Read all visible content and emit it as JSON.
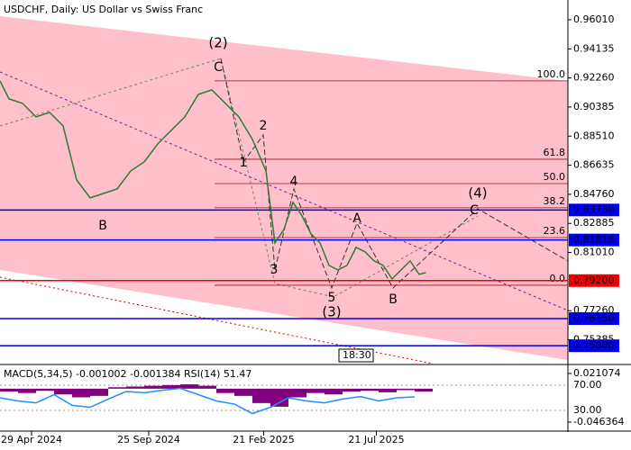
{
  "chart_data": [
    {
      "type": "line",
      "title": "USDCHF, Daily:  US Dollar vs Swiss Franc",
      "x": [
        0,
        8,
        20,
        32,
        44,
        56,
        68,
        80,
        92,
        104,
        116,
        128,
        140,
        152,
        164,
        176,
        188,
        200,
        212,
        224,
        236,
        244,
        252,
        260,
        268,
        276,
        284,
        292,
        300,
        308,
        316,
        324,
        332,
        340,
        348,
        356,
        364,
        372,
        378
      ],
      "series": [
        {
          "color": "#2e7d32",
          "values": [
            0.9207,
            0.9091,
            0.9062,
            0.8975,
            0.9004,
            0.8917,
            0.8569,
            0.8453,
            0.8482,
            0.8511,
            0.8627,
            0.8685,
            0.8801,
            0.8888,
            0.8975,
            0.912,
            0.9149,
            0.9062,
            0.8975,
            0.883,
            0.8627,
            0.8163,
            0.825,
            0.8424,
            0.8337,
            0.8221,
            0.8163,
            0.8018,
            0.7989,
            0.8018,
            0.8134,
            0.8105,
            0.8047,
            0.8018,
            0.7931,
            0.7989,
            0.8047,
            0.796,
            0.7972
          ]
        }
      ],
      "xlim": [
        0,
        504
      ],
      "ylim": [
        0.7385,
        0.9711
      ],
      "xticks": [
        {
          "value": 28,
          "label": "29 Apr 2024"
        },
        {
          "value": 132,
          "label": "25 Sep 2024"
        },
        {
          "value": 234,
          "label": "21 Feb 2025"
        },
        {
          "value": 334,
          "label": "21 Jul 2025"
        }
      ],
      "yticks": [
        {
          "value": 0.9601,
          "label": "0.96010"
        },
        0.94135,
        {
          "value": 0.9226,
          "label": "0.92260"
        },
        0.90385,
        {
          "value": 0.8851,
          "label": "0.88510"
        },
        0.86635,
        {
          "value": 0.8476,
          "label": "0.84760"
        },
        0.82885,
        {
          "value": 0.8101,
          "label": "0.81010"
        },
        {
          "value": 0.7726,
          "label": "0.77260"
        },
        0.75385
      ],
      "levels": [
        {
          "value": 0.8375,
          "label": "0.83750",
          "color": "#0000ee"
        },
        {
          "value": 0.81816,
          "color": "#0000ee"
        },
        {
          "value": 0.792,
          "label": "0.79200",
          "color": "#ee0000"
        },
        {
          "value": 0.7675,
          "label": "0.76750",
          "color": "#0000ee"
        },
        {
          "value": 0.75,
          "label": "0.75000",
          "color": "#0000ee"
        }
      ],
      "fib_levels": [
        {
          "label": "100.0",
          "price": 0.9207
        },
        {
          "label": "61.8",
          "price": 0.8702
        },
        {
          "label": "50.0",
          "price": 0.8545
        },
        {
          "label": "38.2",
          "price": 0.8389
        },
        {
          "label": "23.6",
          "price": 0.8197
        },
        {
          "label": "0.0",
          "price": 0.789
        }
      ],
      "annotations": [
        "(2)",
        "C",
        "2",
        "1",
        "3",
        "4",
        "5",
        "(3)",
        "A",
        "B",
        "(4)",
        "C",
        "B"
      ],
      "time_label": "18:30"
    },
    {
      "type": "macd-rsi",
      "title": "MACD(5,34,5) -0.001002 -0.001384 RSI(14) 51.47",
      "x": [
        0,
        16,
        32,
        48,
        64,
        80,
        96,
        112,
        128,
        144,
        160,
        176,
        192,
        208,
        224,
        240,
        256,
        272,
        288,
        304,
        320,
        336,
        352,
        368
      ],
      "series": [
        {
          "color": "#800080",
          "values": [
            -0.004,
            -0.006,
            -0.003,
            -0.008,
            -0.012,
            -0.01,
            0.002,
            0.003,
            0.004,
            0.005,
            0.006,
            0.004,
            -0.006,
            -0.01,
            -0.02,
            -0.025,
            -0.012,
            -0.006,
            -0.008,
            -0.004,
            -0.003,
            -0.005,
            -0.002,
            -0.004
          ]
        },
        {
          "color": "#1e90ff",
          "axis": "y2",
          "values": [
            50,
            45,
            42,
            55,
            38,
            35,
            48,
            60,
            58,
            62,
            65,
            55,
            45,
            40,
            25,
            35,
            50,
            45,
            42,
            48,
            52,
            45,
            50,
            51.47
          ]
        }
      ],
      "ylim": [
        -0.0576,
        0.0298
      ],
      "yticks": [
        0.021074,
        -0.046364
      ],
      "y2lim": [
        -1.4,
        98.6
      ],
      "y2ticks": [
        {
          "value": 70,
          "label": "70.00"
        },
        {
          "value": 30,
          "label": "30.00"
        }
      ]
    }
  ]
}
